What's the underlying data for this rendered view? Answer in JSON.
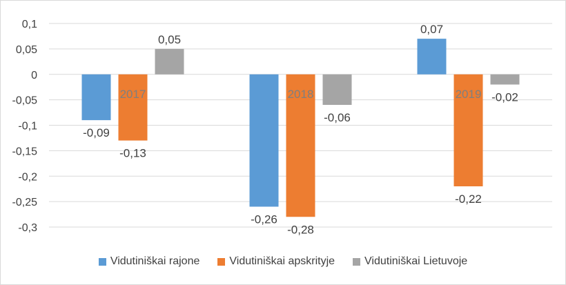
{
  "chart_data": {
    "type": "bar",
    "categories": [
      "2017",
      "2018",
      "2019"
    ],
    "series": [
      {
        "name": "Vidutiniškai rajone",
        "values": [
          -0.09,
          -0.26,
          0.07
        ],
        "labels": [
          "-0,09",
          "-0,26",
          "0,07"
        ],
        "color": "#5b9bd5"
      },
      {
        "name": "Vidutiniškai apskrityje",
        "values": [
          -0.13,
          -0.28,
          -0.22
        ],
        "labels": [
          "-0,13",
          "-0,28",
          "-0,22"
        ],
        "color": "#ed7d31"
      },
      {
        "name": "Vidutiniškai Lietuvoje",
        "values": [
          0.05,
          -0.06,
          -0.02
        ],
        "labels": [
          "0,05",
          "-0,06",
          "-0,02"
        ],
        "color": "#a5a5a5"
      }
    ],
    "y_ticks": [
      {
        "value": 0.1,
        "label": "0,1"
      },
      {
        "value": 0.05,
        "label": "0,05"
      },
      {
        "value": 0,
        "label": "0"
      },
      {
        "value": -0.05,
        "label": "-0,05"
      },
      {
        "value": -0.1,
        "label": "-0,1"
      },
      {
        "value": -0.15,
        "label": "-0,15"
      },
      {
        "value": -0.2,
        "label": "-0,2"
      },
      {
        "value": -0.25,
        "label": "-0,25"
      },
      {
        "value": -0.3,
        "label": "-0,3"
      }
    ],
    "ylim": [
      -0.3,
      0.1
    ],
    "grid": true,
    "legend_position": "bottom"
  }
}
